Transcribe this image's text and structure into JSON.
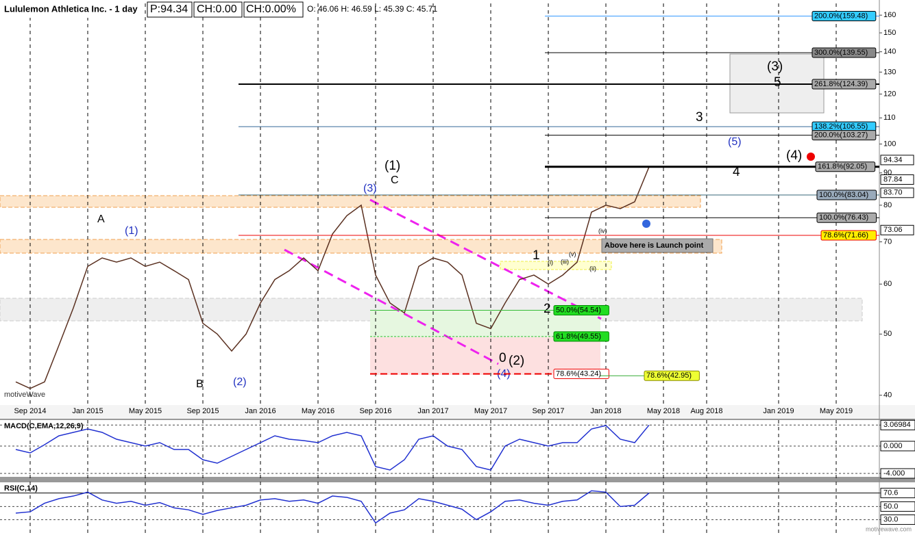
{
  "chart_data": [
    {
      "type": "line",
      "title": "Lululemon Athletica Inc. - 1 day",
      "header_price": "P:94.34",
      "header_change": "CH:0.00",
      "header_change_pct": "CH:0.00%",
      "header_ohlc": "O: 46.06  H: 46.59  L: 45.39  C: 45.71",
      "log_scale": true,
      "ylim": [
        38.6,
        167
      ],
      "yticks": [
        40,
        50,
        60,
        70,
        80,
        90,
        100,
        110,
        120,
        130,
        140,
        150,
        160
      ],
      "xticks": [
        {
          "value": "2014-09",
          "label": "Sep 2014"
        },
        {
          "value": "2015-01",
          "label": "Jan 2015"
        },
        {
          "value": "2015-05",
          "label": "May 2015"
        },
        {
          "value": "2015-09",
          "label": "Sep 2015"
        },
        {
          "value": "2016-01",
          "label": "Jan 2016"
        },
        {
          "value": "2016-05",
          "label": "May 2016"
        },
        {
          "value": "2016-09",
          "label": "Sep 2016"
        },
        {
          "value": "2017-01",
          "label": "Jan 2017"
        },
        {
          "value": "2017-05",
          "label": "May 2017"
        },
        {
          "value": "2017-09",
          "label": "Sep 2017"
        },
        {
          "value": "2018-01",
          "label": "Jan 2018"
        },
        {
          "value": "2018-05",
          "label": "May 2018"
        },
        {
          "value": "2018-08",
          "label": "Aug 2018"
        },
        {
          "value": "2019-01",
          "label": "Jan 2019"
        },
        {
          "value": "2019-05",
          "label": "May 2019"
        }
      ],
      "x": [
        "2014-08",
        "2014-09",
        "2014-10",
        "2014-11",
        "2014-12",
        "2015-01",
        "2015-02",
        "2015-03",
        "2015-04",
        "2015-05",
        "2015-06",
        "2015-07",
        "2015-08",
        "2015-09",
        "2015-10",
        "2015-11",
        "2015-12",
        "2016-01",
        "2016-02",
        "2016-03",
        "2016-04",
        "2016-05",
        "2016-06",
        "2016-07",
        "2016-08",
        "2016-09",
        "2016-10",
        "2016-11",
        "2016-12",
        "2017-01",
        "2017-02",
        "2017-03",
        "2017-04",
        "2017-05",
        "2017-06",
        "2017-07",
        "2017-08",
        "2017-09",
        "2017-10",
        "2017-11",
        "2017-12",
        "2018-01",
        "2018-02",
        "2018-03",
        "2018-04"
      ],
      "series": [
        {
          "name": "Price",
          "color": "#5a3020",
          "values": [
            42,
            41,
            42,
            48,
            55,
            64,
            66,
            65,
            66,
            64,
            65,
            63,
            61,
            52,
            50,
            47,
            50,
            56,
            61,
            63,
            66,
            63,
            72,
            77,
            80,
            62,
            56,
            54,
            64,
            66,
            65,
            62,
            52,
            51,
            56,
            61,
            62,
            60,
            62,
            65,
            78,
            80,
            79,
            81,
            92
          ]
        }
      ],
      "levels": [
        {
          "value": 159.48,
          "label": "200.0%(159.48)"
        },
        {
          "value": 139.55,
          "label": "300.0%(139.55)"
        },
        {
          "value": 124.39,
          "label": "261.8%(124.39)"
        },
        {
          "value": 106.55,
          "label": "138.2%(106.55)"
        },
        {
          "value": 103.27,
          "label": "200.0%(103.27)"
        },
        {
          "value": 92.05,
          "label": "161.8%(92.05)"
        },
        {
          "value": 83.04,
          "label": "100.0%(83.04)"
        },
        {
          "value": 76.43,
          "label": "100.0%(76.43)"
        },
        {
          "value": 71.66,
          "label": "78.6%(71.66)"
        },
        {
          "value": 54.54,
          "label": "50.0%(54.54)"
        },
        {
          "value": 49.55,
          "label": "61.8%(49.55)"
        },
        {
          "value": 43.24,
          "label": "78.6%(43.24)"
        },
        {
          "value": 42.95,
          "label": "78.6%(42.95)"
        }
      ],
      "price_markers": [
        94.34,
        87.84,
        {
          "value": 83.7,
          "label": "83.70"
        },
        73.06
      ],
      "annotations": [
        "A",
        "B",
        "C",
        "(1)",
        "(2)",
        "(3)",
        "(4)",
        "(1)",
        "(2)",
        "0",
        "1",
        "2",
        "3",
        "4",
        "5",
        "(3)",
        "(4)",
        "(5)",
        "(i)",
        "(iii)",
        "(v)",
        "(ii)",
        "(iv)",
        "Above here is Launch point",
        "motiveWave"
      ]
    },
    {
      "type": "line",
      "title": "MACD(C,EMA,12,26,9)",
      "ylim": [
        -4.5,
        3.8
      ],
      "yticks": [
        3.06984,
        {
          "value": 0,
          "label": "0.000"
        },
        {
          "value": -4,
          "label": "-4.000"
        }
      ],
      "series": [
        {
          "name": "MACD",
          "color": "#2030d0",
          "values": [
            -0.5,
            -1,
            0.2,
            1.5,
            2,
            2.5,
            2,
            1,
            0.5,
            0,
            0.5,
            -0.5,
            -0.5,
            -2,
            -2.5,
            -1.5,
            -0.5,
            0.5,
            1.5,
            1,
            0.8,
            0.5,
            1.5,
            2,
            1.5,
            -3,
            -3.5,
            -2,
            1,
            1.5,
            0,
            -0.5,
            -3,
            -3.5,
            0,
            1,
            0.5,
            0,
            0.5,
            0.5,
            2.5,
            3,
            1,
            0.5,
            3.06984
          ]
        }
      ]
    },
    {
      "type": "line",
      "title": "RSI(C,14)",
      "ylim": [
        8.7,
        86.9
      ],
      "yticks": [
        70.6,
        {
          "value": 50,
          "label": "50.0"
        },
        {
          "value": 30,
          "label": "30.0"
        }
      ],
      "series": [
        {
          "name": "RSI",
          "color": "#2030d0",
          "values": [
            40,
            42,
            55,
            62,
            66,
            72,
            60,
            55,
            58,
            52,
            56,
            48,
            45,
            38,
            44,
            48,
            52,
            60,
            62,
            58,
            60,
            55,
            66,
            64,
            58,
            25,
            40,
            45,
            62,
            58,
            52,
            46,
            30,
            42,
            58,
            60,
            55,
            52,
            58,
            60,
            74,
            72,
            50,
            52,
            70.6
          ]
        }
      ]
    }
  ],
  "watermark": "motivewave.com"
}
